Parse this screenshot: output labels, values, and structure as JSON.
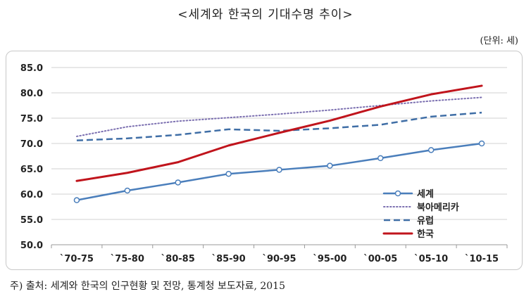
{
  "title": "<세계와 한국의 기대수명 추이>",
  "unit": "(단위: 세)",
  "source": "주) 출처: 세계와 한국의 인구현황 및 전망, 통계청 보도자료, 2015",
  "chart_data": {
    "type": "line",
    "categories": [
      "`70-75",
      "`75-80",
      "`80-85",
      "`85-90",
      "`90-95",
      "`95-00",
      "`00-05",
      "`05-10",
      "`10-15"
    ],
    "ylim": [
      50.0,
      85.0
    ],
    "yticks": [
      "85.0",
      "80.0",
      "75.0",
      "70.0",
      "65.0",
      "60.0",
      "55.0",
      "50.0"
    ],
    "grid": true,
    "legend_position": "bottom-right",
    "series": [
      {
        "name": "세계",
        "values": [
          58.8,
          60.7,
          62.3,
          64.0,
          64.8,
          65.6,
          67.1,
          68.7,
          70.0
        ],
        "color": "#4a7ebb",
        "style": "solid-marker"
      },
      {
        "name": "북아메리카",
        "values": [
          71.4,
          73.3,
          74.4,
          75.1,
          75.8,
          76.6,
          77.5,
          78.4,
          79.1
        ],
        "color": "#7b6fb0",
        "style": "dotted"
      },
      {
        "name": "유럽",
        "values": [
          70.6,
          71.0,
          71.7,
          72.8,
          72.5,
          73.0,
          73.7,
          75.3,
          76.1
        ],
        "color": "#3f6ea6",
        "style": "dashed"
      },
      {
        "name": "한국",
        "values": [
          62.6,
          64.2,
          66.3,
          69.6,
          72.1,
          74.5,
          77.3,
          79.7,
          81.4
        ],
        "color": "#c0141c",
        "style": "solid"
      }
    ]
  }
}
